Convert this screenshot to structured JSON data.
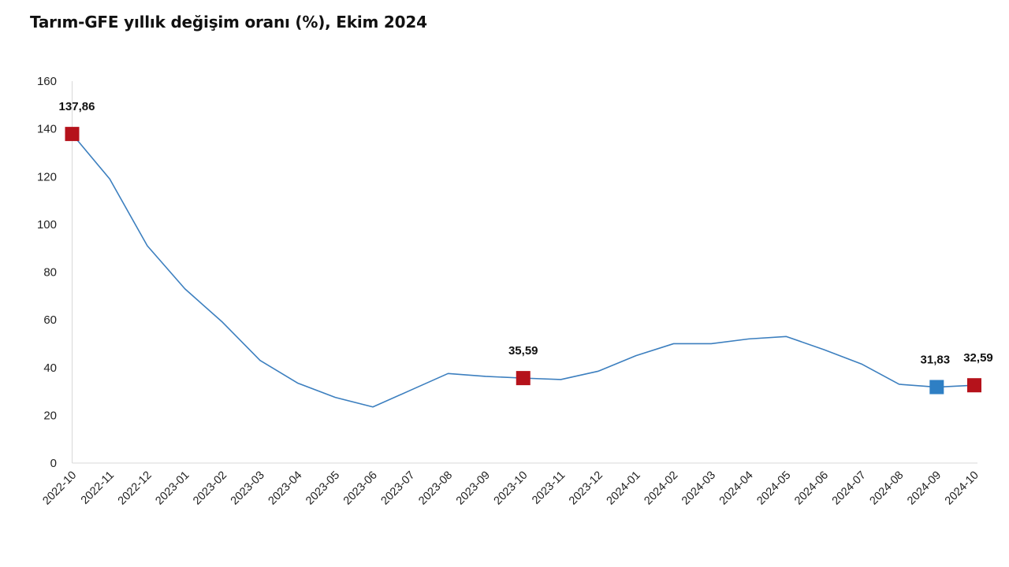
{
  "title": "Tarım-GFE yıllık değişim oranı (%), Ekim 2024",
  "chart_data": {
    "type": "line",
    "title": "Tarım-GFE yıllık değişim oranı (%), Ekim 2024",
    "xlabel": "",
    "ylabel": "",
    "ylim": [
      0,
      160
    ],
    "yticks": [
      0,
      20,
      40,
      60,
      80,
      100,
      120,
      140,
      160
    ],
    "grid": false,
    "legend": "none",
    "categories": [
      "2022-10",
      "2022-11",
      "2022-12",
      "2023-01",
      "2023-02",
      "2023-03",
      "2023-04",
      "2023-05",
      "2023-06",
      "2023-07",
      "2023-08",
      "2023-09",
      "2023-10",
      "2023-11",
      "2023-12",
      "2024-01",
      "2024-02",
      "2024-03",
      "2024-04",
      "2024-05",
      "2024-06",
      "2024-07",
      "2024-08",
      "2024-09",
      "2024-10"
    ],
    "series": [
      {
        "values": [
          137.86,
          119,
          91,
          73,
          59,
          43,
          33.5,
          27.5,
          23.5,
          30.5,
          37.5,
          36.3,
          35.59,
          35,
          38.5,
          45,
          50,
          50,
          52,
          53,
          47.5,
          41.5,
          33,
          31.83,
          32.59
        ],
        "color": "#3c7fbf"
      }
    ],
    "highlighted_points": [
      {
        "index": 0,
        "label": "137,86",
        "color": "#b5121b"
      },
      {
        "index": 12,
        "label": "35,59",
        "color": "#b5121b"
      },
      {
        "index": 23,
        "label": "31,83",
        "color": "#2e7fc4"
      },
      {
        "index": 24,
        "label": "32,59",
        "color": "#b5121b"
      }
    ]
  }
}
